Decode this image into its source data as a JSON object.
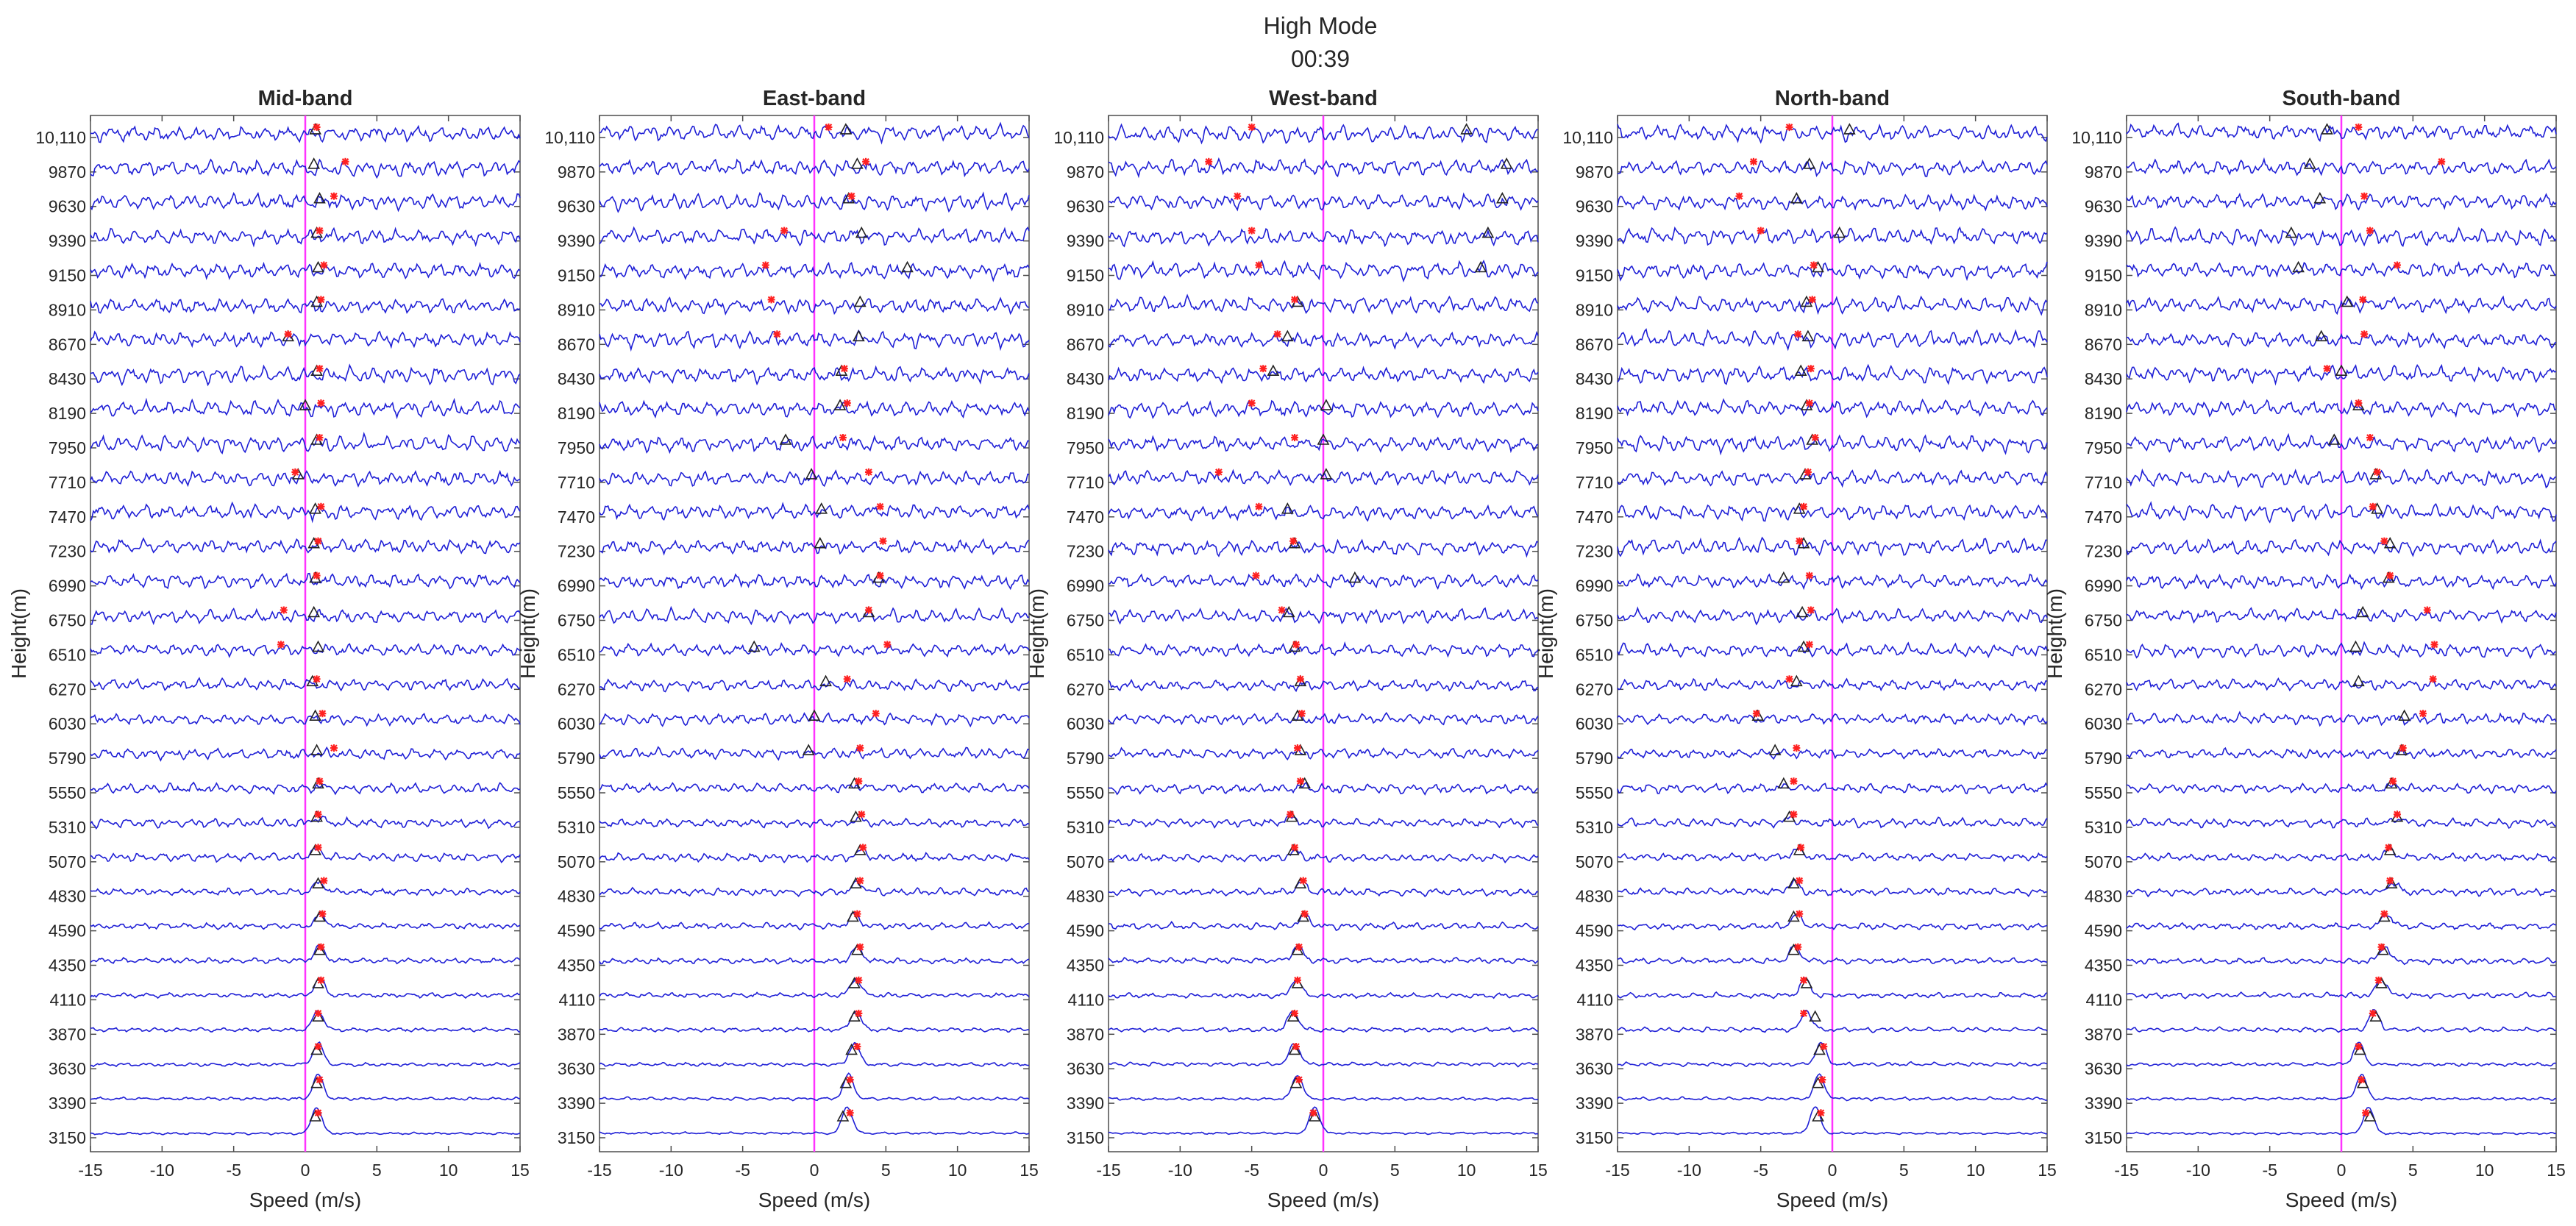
{
  "figure": {
    "title_line1": "High Mode",
    "title_line2": "00:39"
  },
  "chart_data": [
    {
      "type": "line",
      "title": "Mid-band",
      "xlabel": "Speed (m/s)",
      "ylabel": "Height(m)",
      "xlim": [
        -15,
        15
      ],
      "xticks": [
        -15,
        -10,
        -5,
        0,
        5,
        10,
        15
      ],
      "heights": [
        3150,
        3390,
        3630,
        3870,
        4110,
        4350,
        4590,
        4830,
        5070,
        5310,
        5550,
        5790,
        6030,
        6270,
        6510,
        6750,
        6990,
        7230,
        7470,
        7710,
        7950,
        8190,
        8430,
        8670,
        8910,
        9150,
        9390,
        9630,
        9870,
        10110
      ],
      "height_labels": [
        "3150",
        "3390",
        "3630",
        "3870",
        "4110",
        "4350",
        "4590",
        "4830",
        "5070",
        "5310",
        "5550",
        "5790",
        "6030",
        "6270",
        "6510",
        "6750",
        "6990",
        "7230",
        "7470",
        "7710",
        "7950",
        "8190",
        "8430",
        "8670",
        "8910",
        "9150",
        "9390",
        "9630",
        "9870",
        "10,110"
      ],
      "reference_line_x": 0,
      "peak_speed": [
        0.8,
        0.9,
        0.9,
        0.9,
        1.0,
        1.0,
        1.1,
        1.0,
        0.8,
        0.9,
        1.0,
        0.8,
        0.9,
        0.6,
        0.7,
        0.6,
        0.7,
        0.8,
        0.8,
        0.5,
        0.6,
        0.7,
        0.8,
        0.7,
        0.8,
        0.9,
        0.8,
        0.9,
        0.7,
        0.6
      ],
      "triangle_marker_speed": [
        0.7,
        0.8,
        0.8,
        0.9,
        0.9,
        1.0,
        1.0,
        0.9,
        0.7,
        0.8,
        0.9,
        0.8,
        0.7,
        0.5,
        0.9,
        0.6,
        0.7,
        0.6,
        0.7,
        -0.5,
        0.8,
        0.0,
        0.8,
        -1.2,
        0.8,
        0.9,
        0.8,
        1.0,
        0.6,
        0.7
      ],
      "star_marker_speed": [
        0.9,
        1.0,
        0.9,
        0.9,
        1.1,
        1.1,
        1.2,
        1.3,
        0.9,
        0.9,
        1.0,
        2.0,
        1.2,
        0.8,
        -1.7,
        -1.5,
        0.8,
        0.9,
        1.1,
        -0.7,
        1.0,
        1.1,
        1.0,
        -1.2,
        1.1,
        1.3,
        1.0,
        2.0,
        2.8,
        0.8
      ]
    },
    {
      "type": "line",
      "title": "East-band",
      "xlabel": "Speed (m/s)",
      "ylabel": "Height(m)",
      "xlim": [
        -15,
        15
      ],
      "xticks": [
        -15,
        -10,
        -5,
        0,
        5,
        10,
        15
      ],
      "heights": [
        3150,
        3390,
        3630,
        3870,
        4110,
        4350,
        4590,
        4830,
        5070,
        5310,
        5550,
        5790,
        6030,
        6270,
        6510,
        6750,
        6990,
        7230,
        7470,
        7710,
        7950,
        8190,
        8430,
        8670,
        8910,
        9150,
        9390,
        9630,
        9870,
        10110
      ],
      "height_labels": [
        "3150",
        "3390",
        "3630",
        "3870",
        "4110",
        "4350",
        "4590",
        "4830",
        "5070",
        "5310",
        "5550",
        "5790",
        "6030",
        "6270",
        "6510",
        "6750",
        "6990",
        "7230",
        "7470",
        "7710",
        "7950",
        "8190",
        "8430",
        "8670",
        "8910",
        "9150",
        "9390",
        "9630",
        "9870",
        "10,110"
      ],
      "reference_line_x": 0,
      "peak_speed": [
        2.3,
        2.4,
        2.8,
        2.9,
        2.9,
        3.0,
        2.8,
        3.1,
        3.3,
        3.1,
        2.9,
        2.8,
        3.4,
        2.6,
        4.2,
        4.5,
        4.6,
        3.8,
        4.2,
        3.0,
        2.7,
        2.2,
        2.0,
        2.4,
        3.0,
        3.6,
        3.2,
        2.4,
        3.8,
        2.2
      ],
      "triangle_marker_speed": [
        2.0,
        2.2,
        2.6,
        2.8,
        2.8,
        3.0,
        2.7,
        2.9,
        3.2,
        2.9,
        2.8,
        -0.4,
        0.0,
        0.8,
        -4.2,
        3.8,
        4.5,
        0.4,
        0.5,
        -0.2,
        -2.0,
        1.8,
        1.9,
        3.1,
        3.2,
        6.5,
        3.3,
        2.4,
        3.0,
        2.2
      ],
      "star_marker_speed": [
        2.5,
        2.5,
        3.0,
        3.1,
        3.1,
        3.2,
        3.0,
        3.2,
        3.4,
        3.3,
        3.1,
        3.2,
        4.3,
        2.3,
        5.1,
        3.8,
        4.6,
        4.8,
        4.6,
        3.8,
        2.0,
        2.3,
        2.1,
        -2.6,
        -3.0,
        -3.4,
        -2.1,
        2.6,
        3.6,
        1.0
      ]
    },
    {
      "type": "line",
      "title": "West-band",
      "xlabel": "Speed (m/s)",
      "ylabel": "Height(m)",
      "xlim": [
        -15,
        15
      ],
      "xticks": [
        -15,
        -10,
        -5,
        0,
        5,
        10,
        15
      ],
      "heights": [
        3150,
        3390,
        3630,
        3870,
        4110,
        4350,
        4590,
        4830,
        5070,
        5310,
        5550,
        5790,
        6030,
        6270,
        6510,
        6750,
        6990,
        7230,
        7470,
        7710,
        7950,
        8190,
        8430,
        8670,
        8910,
        9150,
        9390,
        9630,
        9870,
        10110
      ],
      "height_labels": [
        "3150",
        "3390",
        "3630",
        "3870",
        "4110",
        "4350",
        "4590",
        "4830",
        "5070",
        "5310",
        "5550",
        "5790",
        "6030",
        "6270",
        "6510",
        "6750",
        "6990",
        "7230",
        "7470",
        "7710",
        "7950",
        "8190",
        "8430",
        "8670",
        "8910",
        "9150",
        "9390",
        "9630",
        "9870",
        "10,110"
      ],
      "reference_line_x": 0,
      "peak_speed": [
        -0.6,
        -1.8,
        -2.0,
        -2.1,
        -1.9,
        -1.8,
        -1.3,
        -1.5,
        -2.0,
        -2.3,
        -1.4,
        -1.9,
        -1.6,
        -1.7,
        -2.0,
        -2.3,
        -2.4,
        -2.1,
        -3.3,
        -2.1,
        -2.0,
        -3.2,
        -4.2,
        -2.6,
        -2.0,
        -2.3,
        -1.9,
        -1.8,
        -2.2,
        -0.8
      ],
      "triangle_marker_speed": [
        -0.6,
        -1.9,
        -2.0,
        -2.1,
        -1.8,
        -1.8,
        -1.4,
        -1.6,
        -2.1,
        -2.2,
        -1.3,
        -1.6,
        -1.8,
        -1.6,
        -2.0,
        -2.4,
        2.2,
        -2.0,
        -2.5,
        0.2,
        0.0,
        0.2,
        -3.5,
        -2.5,
        -1.8,
        11.0,
        11.5,
        12.5,
        12.8,
        10.0
      ],
      "star_marker_speed": [
        -0.7,
        -1.7,
        -1.9,
        -2.0,
        -1.8,
        -1.7,
        -1.3,
        -1.4,
        -2.0,
        -2.3,
        -1.6,
        -1.8,
        -1.5,
        -1.6,
        -1.9,
        -2.9,
        -4.7,
        -2.1,
        -4.5,
        -7.3,
        -2.0,
        -5.0,
        -4.2,
        -3.2,
        -2.0,
        -4.5,
        -5.0,
        -6.0,
        -8.0,
        -5.0
      ]
    },
    {
      "type": "line",
      "title": "North-band",
      "xlabel": "Speed (m/s)",
      "ylabel": "Height(m)",
      "xlim": [
        -15,
        15
      ],
      "xticks": [
        -15,
        -10,
        -5,
        0,
        5,
        10,
        15
      ],
      "heights": [
        3150,
        3390,
        3630,
        3870,
        4110,
        4350,
        4590,
        4830,
        5070,
        5310,
        5550,
        5790,
        6030,
        6270,
        6510,
        6750,
        6990,
        7230,
        7470,
        7710,
        7950,
        8190,
        8430,
        8670,
        8910,
        9150,
        9390,
        9630,
        9870,
        10110
      ],
      "height_labels": [
        "3150",
        "3390",
        "3630",
        "3870",
        "4110",
        "4350",
        "4590",
        "4830",
        "5070",
        "5310",
        "5550",
        "5790",
        "6030",
        "6270",
        "6510",
        "6750",
        "6990",
        "7230",
        "7470",
        "7710",
        "7950",
        "8190",
        "8430",
        "8670",
        "8910",
        "9150",
        "9390",
        "9630",
        "9870",
        "10,110"
      ],
      "reference_line_x": 0,
      "peak_speed": [
        -1.2,
        -0.9,
        -0.8,
        -1.8,
        -1.9,
        -2.6,
        -2.5,
        -2.7,
        -2.4,
        -2.9,
        -3.0,
        -2.3,
        -4.0,
        -2.0,
        -1.7,
        -1.6,
        -1.8,
        -2.4,
        -2.0,
        -1.9,
        -1.3,
        -1.6,
        -2.0,
        -1.8,
        -2.0,
        -1.4,
        -4.8,
        -5.0,
        -4.5,
        0.8
      ],
      "triangle_marker_speed": [
        -1.0,
        -1.0,
        -0.9,
        -1.2,
        -1.8,
        -2.7,
        -2.7,
        -2.7,
        -2.3,
        -3.0,
        -3.4,
        -4.0,
        -5.2,
        -2.5,
        -2.0,
        -2.1,
        -3.4,
        -2.0,
        -2.3,
        -1.9,
        -1.4,
        -1.8,
        -2.2,
        -1.7,
        -1.8,
        -1.0,
        0.5,
        -2.5,
        -1.6,
        1.2
      ],
      "star_marker_speed": [
        -0.8,
        -0.7,
        -0.6,
        -2.0,
        -2.0,
        -2.4,
        -2.3,
        -2.3,
        -2.2,
        -2.7,
        -2.7,
        -2.5,
        -5.3,
        -3.0,
        -1.6,
        -1.5,
        -1.6,
        -2.3,
        -2.0,
        -1.7,
        -1.2,
        -1.6,
        -1.5,
        -2.4,
        -1.4,
        -1.3,
        -5.0,
        -6.5,
        -5.5,
        -3.0
      ]
    },
    {
      "type": "line",
      "title": "South-band",
      "xlabel": "Speed (m/s)",
      "ylabel": "Height(m)",
      "xlim": [
        -15,
        15
      ],
      "xticks": [
        -15,
        -10,
        -5,
        0,
        5,
        10,
        15
      ],
      "heights": [
        3150,
        3390,
        3630,
        3870,
        4110,
        4350,
        4590,
        4830,
        5070,
        5310,
        5550,
        5790,
        6030,
        6270,
        6510,
        6750,
        6990,
        7230,
        7470,
        7710,
        7950,
        8190,
        8430,
        8670,
        8910,
        9150,
        9390,
        9630,
        9870,
        10110
      ],
      "height_labels": [
        "3150",
        "3390",
        "3630",
        "3870",
        "4110",
        "4350",
        "4590",
        "4830",
        "5070",
        "5310",
        "5550",
        "5790",
        "6030",
        "6270",
        "6510",
        "6750",
        "6990",
        "7230",
        "7470",
        "7710",
        "7950",
        "8190",
        "8430",
        "8670",
        "8910",
        "9150",
        "9390",
        "9630",
        "9870",
        "10,110"
      ],
      "reference_line_x": 0,
      "peak_speed": [
        1.9,
        1.4,
        1.2,
        2.3,
        2.8,
        3.0,
        3.2,
        3.6,
        3.4,
        4.0,
        3.8,
        4.5,
        4.3,
        2.8,
        2.6,
        3.6,
        3.2,
        3.4,
        2.7,
        2.5,
        2.3,
        1.0,
        1.2,
        0.8,
        0.6,
        1.0,
        0.5,
        -1.0,
        0.2,
        1.5
      ],
      "triangle_marker_speed": [
        2.0,
        1.5,
        1.3,
        2.4,
        2.8,
        2.9,
        3.0,
        3.5,
        3.4,
        3.9,
        3.5,
        4.2,
        4.4,
        1.2,
        1.0,
        1.5,
        3.3,
        3.4,
        2.5,
        2.4,
        -0.5,
        1.2,
        0.0,
        -1.4,
        0.4,
        -3.0,
        -3.5,
        -1.5,
        -2.2,
        -1.0
      ],
      "star_marker_speed": [
        1.7,
        1.4,
        1.2,
        2.2,
        2.6,
        2.8,
        3.0,
        3.4,
        3.3,
        3.9,
        3.6,
        4.3,
        5.7,
        6.4,
        6.5,
        6.0,
        3.4,
        3.0,
        2.2,
        2.5,
        2.0,
        1.2,
        -1.0,
        1.6,
        1.5,
        3.9,
        2.0,
        1.6,
        7.0,
        1.2
      ]
    }
  ]
}
